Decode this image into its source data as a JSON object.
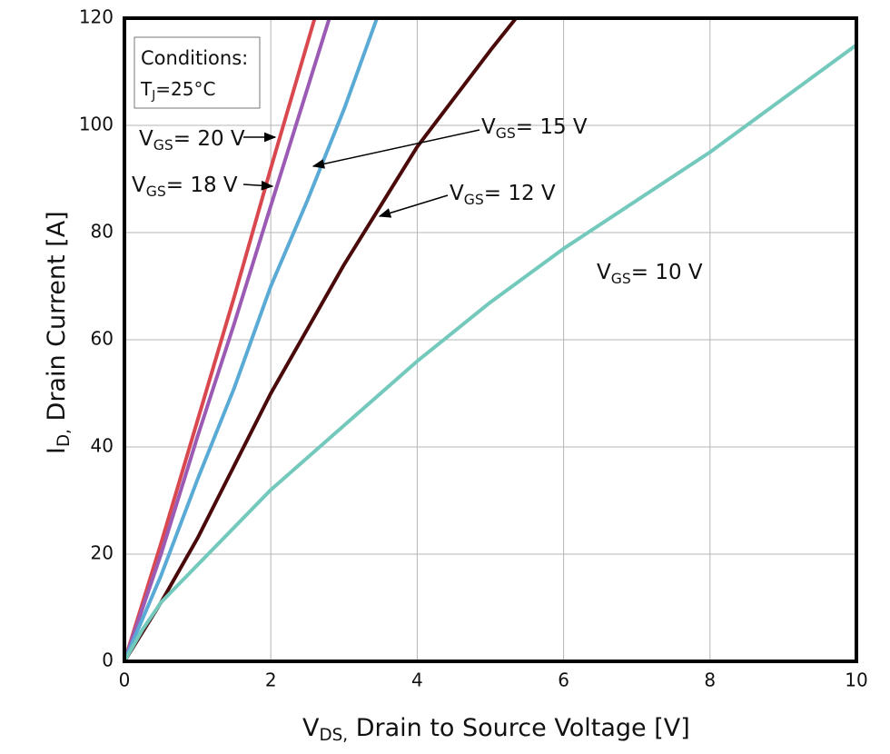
{
  "chart_data": {
    "type": "line",
    "xlabel": {
      "main": "V",
      "sub": "DS,",
      "rest": " Drain to Source Voltage [V]"
    },
    "ylabel": {
      "main": "I",
      "sub": "D,",
      "rest": " Drain Current [A]"
    },
    "xlim": [
      0,
      10
    ],
    "ylim": [
      0,
      120
    ],
    "xticks": [
      0,
      2,
      4,
      6,
      8,
      10
    ],
    "yticks": [
      0,
      20,
      40,
      60,
      80,
      100,
      120
    ],
    "grid": true,
    "conditions": {
      "title": "Conditions:",
      "line": {
        "main": "T",
        "sub": "J",
        "rest": "=25°C"
      }
    },
    "series": [
      {
        "name": {
          "main": "V",
          "sub": "GS",
          "rest": "= 20 V"
        },
        "color": "#d9474f",
        "x": [
          0,
          0.5,
          1,
          1.5,
          2,
          2.6
        ],
        "values": [
          0,
          22,
          45,
          68,
          92,
          120
        ]
      },
      {
        "name": {
          "main": "V",
          "sub": "GS",
          "rest": "= 18 V"
        },
        "color": "#9b5bb5",
        "x": [
          0,
          0.5,
          1,
          1.5,
          2,
          2.8
        ],
        "values": [
          0,
          20,
          42,
          63,
          85,
          120
        ]
      },
      {
        "name": {
          "main": "V",
          "sub": "GS",
          "rest": "= 15 V"
        },
        "color": "#5aaad6",
        "x": [
          0,
          0.5,
          1,
          1.5,
          2,
          2.5,
          3,
          3.45
        ],
        "values": [
          0,
          16,
          34,
          51,
          70,
          86,
          103,
          120
        ]
      },
      {
        "name": {
          "main": "V",
          "sub": "GS",
          "rest": "= 12 V"
        },
        "color": "#4a0a0a",
        "x": [
          0,
          0.5,
          1,
          2,
          3,
          4,
          5,
          5.35
        ],
        "values": [
          0,
          11,
          23,
          50,
          74,
          96,
          114,
          120
        ]
      },
      {
        "name": {
          "main": "V",
          "sub": "GS",
          "rest": "= 10 V"
        },
        "color": "#74c9bd",
        "x": [
          0,
          0.25,
          0.5,
          1,
          2,
          3,
          4,
          5,
          6,
          7,
          8,
          9,
          10
        ],
        "values": [
          0,
          6,
          11,
          18,
          32,
          44,
          56,
          67,
          77,
          86,
          95,
          105,
          115
        ]
      }
    ]
  }
}
